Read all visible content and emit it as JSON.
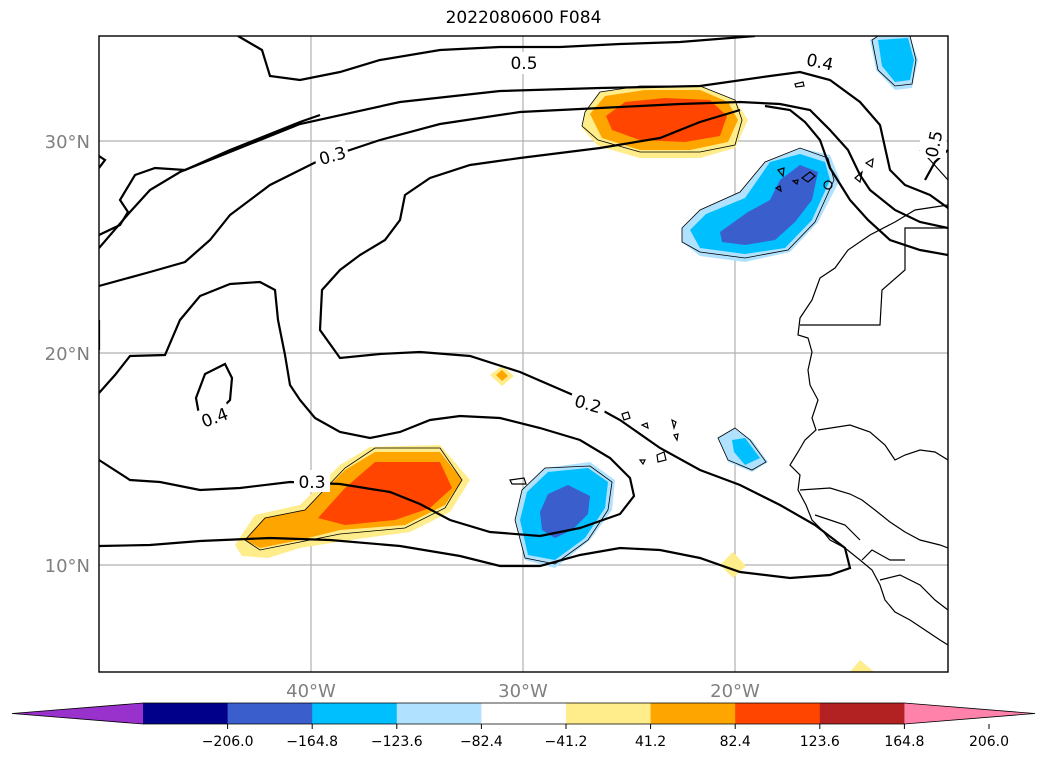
{
  "title": "2022080600 F084",
  "map": {
    "lat_labels": [
      "30°N",
      "20°N",
      "10°N"
    ],
    "lon_labels": [
      "40°W",
      "30°W",
      "20°W"
    ],
    "contour_labels": [
      "0.5",
      "0.4",
      "0.3",
      "0.5",
      "0.2",
      "0.4",
      "0.3"
    ]
  },
  "colorbar": {
    "colors": [
      "#9932cc",
      "#00008b",
      "#3a5fcd",
      "#00bfff",
      "#b0e2ff",
      "#ffffff",
      "#ffec8b",
      "#ffa500",
      "#ff4500",
      "#b22222",
      "#ff82ab"
    ],
    "tick_labels": [
      "−206.0",
      "−164.8",
      "−123.6",
      "−82.4",
      "−41.2",
      "41.2",
      "82.4",
      "123.6",
      "164.8",
      "206.0"
    ]
  }
}
